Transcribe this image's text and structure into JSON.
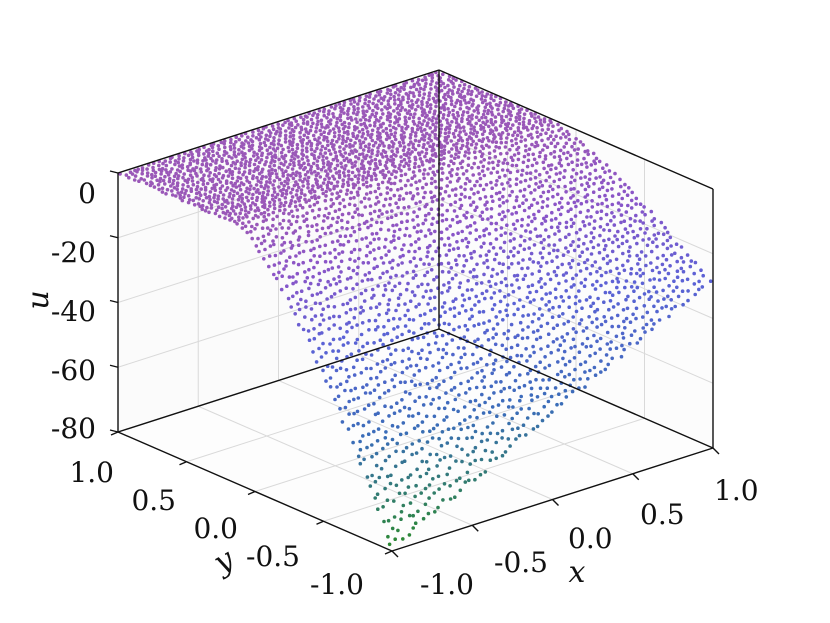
{
  "chart_data": {
    "type": "scatter",
    "title": "",
    "xlabel": "x",
    "ylabel": "y",
    "zlabel": "u",
    "xlim": [
      -1.0,
      1.0
    ],
    "ylim": [
      -1.0,
      1.0
    ],
    "zlim": [
      -80,
      0
    ],
    "x_ticks": [
      "-1.0",
      "-0.5",
      "0.0",
      "0.5",
      "1.0"
    ],
    "y_ticks": [
      "-1.0",
      "-0.5",
      "0.0",
      "0.5",
      "1.0"
    ],
    "z_ticks": [
      "0",
      "-20",
      "-40",
      "-60",
      "-80"
    ],
    "grid": true,
    "colormap": [
      "#2a8a2a",
      "#3a6db8",
      "#5b62d6",
      "#8a55c8",
      "#9a58b8"
    ],
    "surface": {
      "description_of_values": "u = 0 for y > 0.15; for y <= 0.15 u decreases toward -80 near x=-1, y=-1",
      "flat_value": 0,
      "min_value": -80
    }
  }
}
